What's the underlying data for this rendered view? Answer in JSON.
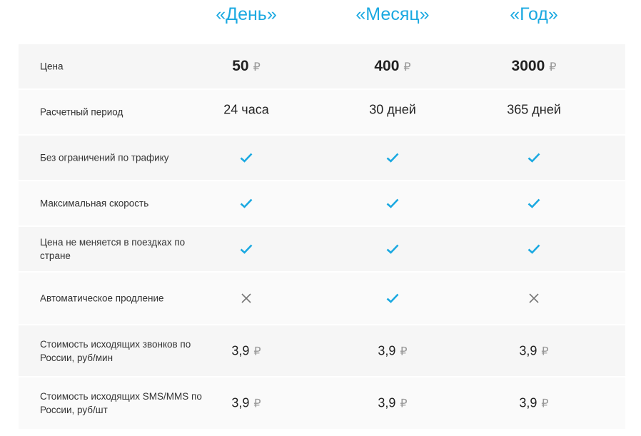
{
  "plans": [
    "«День»",
    "«Месяц»",
    "«Год»"
  ],
  "currency_symbol": "₽",
  "colors": {
    "accent": "#1ba9e1",
    "cross": "#777777"
  },
  "rows": [
    {
      "label": "Цена",
      "type": "price",
      "values": [
        "50",
        "400",
        "3000"
      ]
    },
    {
      "label": "Расчетный период",
      "type": "text",
      "values": [
        "24 часа",
        "30 дней",
        "365 дней"
      ]
    },
    {
      "label": "Без ограничений по трафику",
      "type": "bool",
      "values": [
        true,
        true,
        true
      ]
    },
    {
      "label": "Максимальная скорость",
      "type": "bool",
      "values": [
        true,
        true,
        true
      ]
    },
    {
      "label": "Цена не меняется в поездках по стране",
      "type": "bool",
      "values": [
        true,
        true,
        true
      ]
    },
    {
      "label": "Автоматическое продление",
      "type": "bool",
      "values": [
        false,
        true,
        false
      ]
    },
    {
      "label": "Стоимость исходящих звонков по России, руб/мин",
      "type": "money",
      "values": [
        "3,9",
        "3,9",
        "3,9"
      ]
    },
    {
      "label": "Стоимость исходящих SMS/MMS по России, руб/шт",
      "type": "money",
      "values": [
        "3,9",
        "3,9",
        "3,9"
      ]
    }
  ]
}
